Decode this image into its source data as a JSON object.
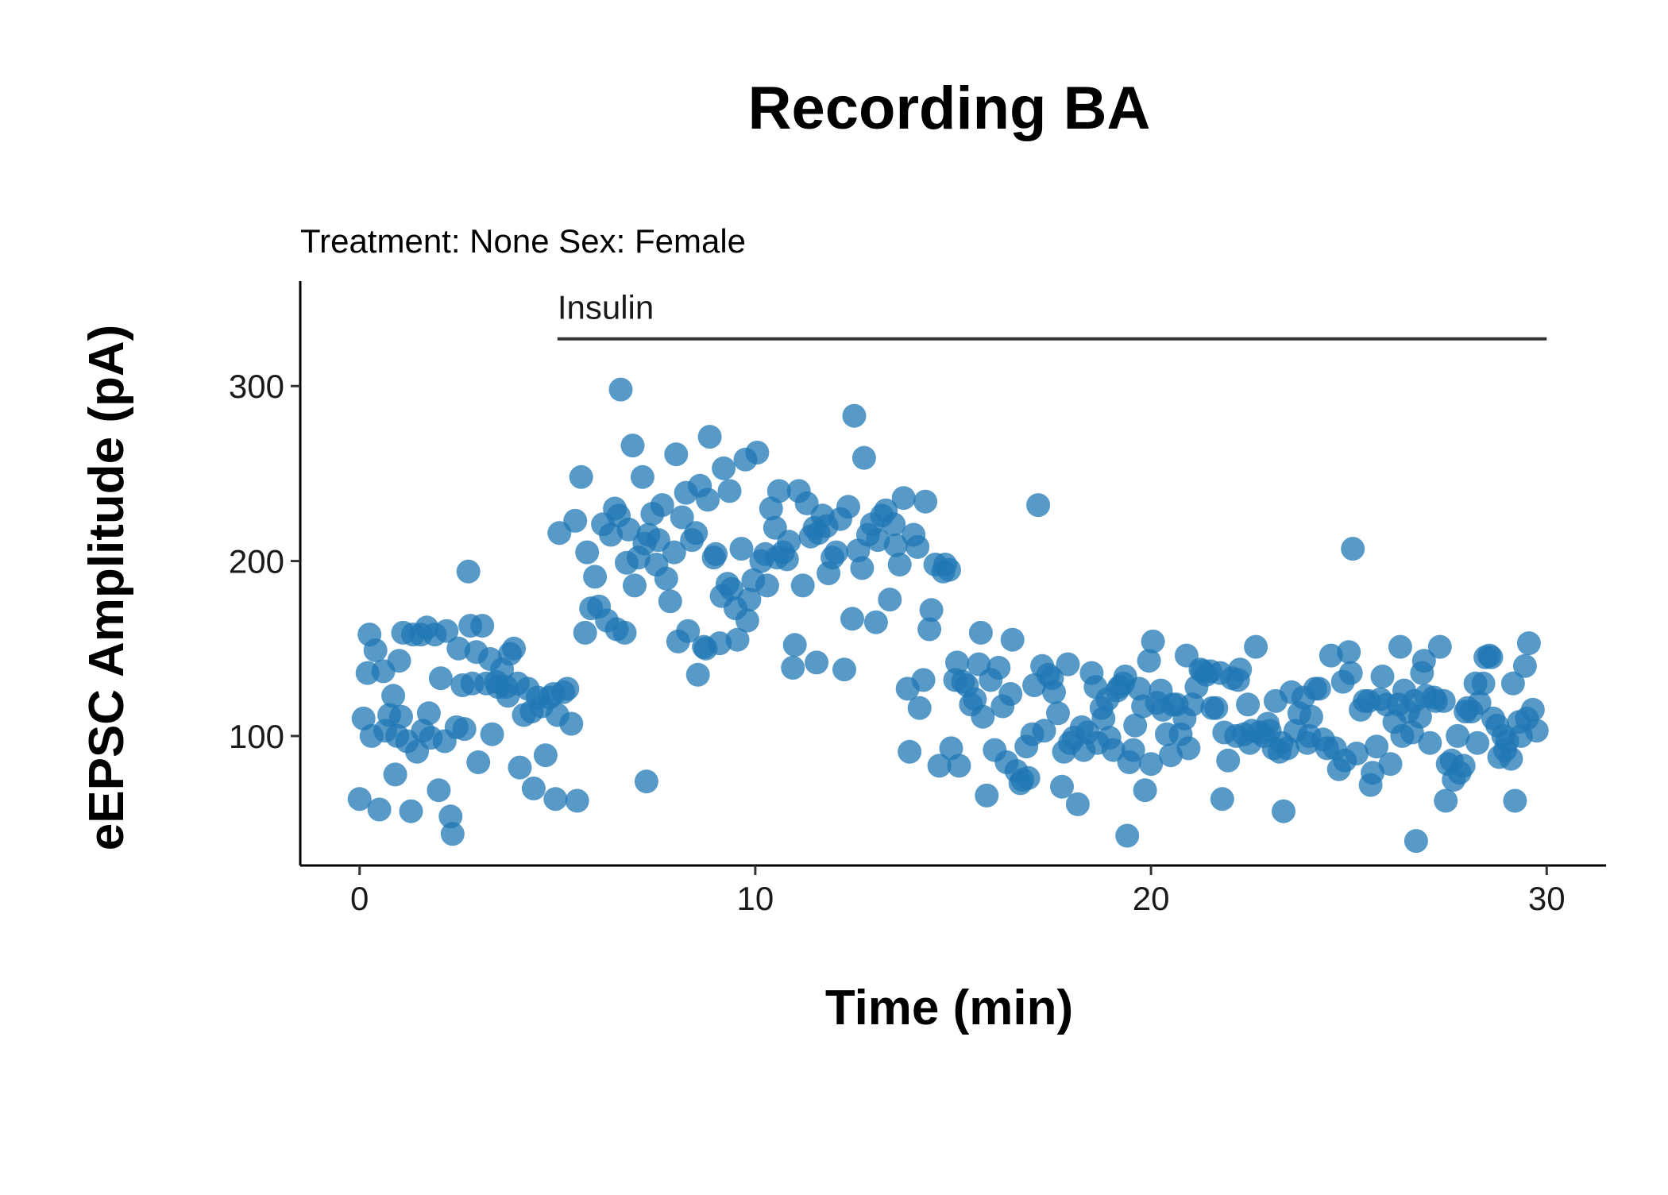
{
  "chart_data": {
    "type": "scatter",
    "title": "Recording BA",
    "subtitle": "Treatment: None  Sex: Female",
    "xlabel": "Time (min)",
    "ylabel": "eEPSC Amplitude (pA)",
    "xlim": [
      -1.5,
      31.5
    ],
    "ylim": [
      26,
      360
    ],
    "xticks": [
      0,
      10,
      20,
      30
    ],
    "yticks": [
      100,
      200,
      300
    ],
    "grid": false,
    "legend": "none",
    "point_color": "#1f77b4",
    "annotation": {
      "label": "Insulin",
      "x_start": 5,
      "x_end": 30,
      "y": 327
    },
    "points": [
      [
        0.0,
        64
      ],
      [
        0.1,
        110
      ],
      [
        0.2,
        136
      ],
      [
        0.25,
        158
      ],
      [
        0.3,
        100
      ],
      [
        0.4,
        149
      ],
      [
        0.5,
        58
      ],
      [
        0.6,
        137
      ],
      [
        0.65,
        103
      ],
      [
        0.75,
        112
      ],
      [
        0.85,
        123
      ],
      [
        0.9,
        78
      ],
      [
        0.95,
        100
      ],
      [
        1.0,
        143
      ],
      [
        1.05,
        111
      ],
      [
        1.1,
        159
      ],
      [
        1.2,
        97
      ],
      [
        1.3,
        57
      ],
      [
        1.35,
        158
      ],
      [
        1.45,
        91
      ],
      [
        1.55,
        158
      ],
      [
        1.6,
        103
      ],
      [
        1.7,
        162
      ],
      [
        1.75,
        113
      ],
      [
        1.8,
        99
      ],
      [
        1.9,
        158
      ],
      [
        2.0,
        69
      ],
      [
        2.05,
        133
      ],
      [
        2.15,
        97
      ],
      [
        2.2,
        160
      ],
      [
        2.3,
        54
      ],
      [
        2.35,
        44
      ],
      [
        2.45,
        105
      ],
      [
        2.5,
        150
      ],
      [
        2.6,
        129
      ],
      [
        2.65,
        104
      ],
      [
        2.75,
        194
      ],
      [
        2.8,
        163
      ],
      [
        2.85,
        130
      ],
      [
        2.95,
        148
      ],
      [
        3.0,
        85
      ],
      [
        3.1,
        163
      ],
      [
        3.2,
        130
      ],
      [
        3.3,
        144
      ],
      [
        3.35,
        101
      ],
      [
        3.45,
        131
      ],
      [
        3.5,
        128
      ],
      [
        3.6,
        138
      ],
      [
        3.7,
        128
      ],
      [
        3.75,
        123
      ],
      [
        3.8,
        147
      ],
      [
        3.9,
        150
      ],
      [
        4.0,
        130
      ],
      [
        4.05,
        82
      ],
      [
        4.15,
        112
      ],
      [
        4.25,
        127
      ],
      [
        4.35,
        114
      ],
      [
        4.4,
        70
      ],
      [
        4.5,
        122
      ],
      [
        4.6,
        117
      ],
      [
        4.7,
        89
      ],
      [
        4.8,
        122
      ],
      [
        4.9,
        124
      ],
      [
        4.95,
        64
      ],
      [
        5.0,
        112
      ],
      [
        5.05,
        216
      ],
      [
        5.15,
        125
      ],
      [
        5.25,
        127
      ],
      [
        5.35,
        107
      ],
      [
        5.45,
        223
      ],
      [
        5.5,
        63
      ],
      [
        5.6,
        248
      ],
      [
        5.7,
        159
      ],
      [
        5.75,
        205
      ],
      [
        5.85,
        173
      ],
      [
        5.95,
        191
      ],
      [
        6.05,
        174
      ],
      [
        6.15,
        221
      ],
      [
        6.25,
        166
      ],
      [
        6.35,
        215
      ],
      [
        6.45,
        230
      ],
      [
        6.5,
        161
      ],
      [
        6.55,
        226
      ],
      [
        6.6,
        298
      ],
      [
        6.7,
        159
      ],
      [
        6.75,
        199
      ],
      [
        6.8,
        218
      ],
      [
        6.9,
        266
      ],
      [
        6.95,
        186
      ],
      [
        7.05,
        202
      ],
      [
        7.15,
        248
      ],
      [
        7.2,
        210
      ],
      [
        7.25,
        74
      ],
      [
        7.3,
        215
      ],
      [
        7.4,
        227
      ],
      [
        7.5,
        198
      ],
      [
        7.55,
        212
      ],
      [
        7.65,
        232
      ],
      [
        7.75,
        190
      ],
      [
        7.85,
        177
      ],
      [
        7.95,
        205
      ],
      [
        8.0,
        261
      ],
      [
        8.05,
        154
      ],
      [
        8.15,
        225
      ],
      [
        8.25,
        239
      ],
      [
        8.3,
        160
      ],
      [
        8.4,
        212
      ],
      [
        8.5,
        216
      ],
      [
        8.55,
        135
      ],
      [
        8.6,
        243
      ],
      [
        8.7,
        151
      ],
      [
        8.75,
        150
      ],
      [
        8.8,
        235
      ],
      [
        8.85,
        271
      ],
      [
        8.95,
        202
      ],
      [
        9.0,
        204
      ],
      [
        9.1,
        153
      ],
      [
        9.15,
        180
      ],
      [
        9.2,
        253
      ],
      [
        9.3,
        187
      ],
      [
        9.35,
        240
      ],
      [
        9.4,
        184
      ],
      [
        9.5,
        173
      ],
      [
        9.55,
        155
      ],
      [
        9.65,
        207
      ],
      [
        9.75,
        258
      ],
      [
        9.8,
        166
      ],
      [
        9.85,
        178
      ],
      [
        9.95,
        189
      ],
      [
        10.05,
        262
      ],
      [
        10.15,
        200
      ],
      [
        10.25,
        204
      ],
      [
        10.3,
        186
      ],
      [
        10.4,
        230
      ],
      [
        10.5,
        219
      ],
      [
        10.55,
        202
      ],
      [
        10.6,
        240
      ],
      [
        10.7,
        205
      ],
      [
        10.8,
        201
      ],
      [
        10.85,
        211
      ],
      [
        10.95,
        139
      ],
      [
        11.0,
        152
      ],
      [
        11.1,
        240
      ],
      [
        11.2,
        186
      ],
      [
        11.3,
        233
      ],
      [
        11.4,
        214
      ],
      [
        11.5,
        219
      ],
      [
        11.55,
        142
      ],
      [
        11.6,
        216
      ],
      [
        11.7,
        226
      ],
      [
        11.8,
        220
      ],
      [
        11.85,
        193
      ],
      [
        11.95,
        202
      ],
      [
        12.05,
        205
      ],
      [
        12.15,
        224
      ],
      [
        12.25,
        138
      ],
      [
        12.35,
        231
      ],
      [
        12.45,
        167
      ],
      [
        12.5,
        283
      ],
      [
        12.6,
        206
      ],
      [
        12.7,
        196
      ],
      [
        12.75,
        259
      ],
      [
        12.85,
        215
      ],
      [
        12.95,
        221
      ],
      [
        13.05,
        165
      ],
      [
        13.1,
        212
      ],
      [
        13.2,
        226
      ],
      [
        13.3,
        229
      ],
      [
        13.4,
        178
      ],
      [
        13.5,
        221
      ],
      [
        13.55,
        209
      ],
      [
        13.65,
        198
      ],
      [
        13.75,
        236
      ],
      [
        13.85,
        127
      ],
      [
        13.9,
        91
      ],
      [
        14.0,
        215
      ],
      [
        14.1,
        208
      ],
      [
        14.15,
        116
      ],
      [
        14.25,
        132
      ],
      [
        14.3,
        234
      ],
      [
        14.4,
        161
      ],
      [
        14.45,
        172
      ],
      [
        14.55,
        198
      ],
      [
        14.65,
        83
      ],
      [
        14.75,
        194
      ],
      [
        14.8,
        198
      ],
      [
        14.9,
        195
      ],
      [
        14.95,
        93
      ],
      [
        15.05,
        132
      ],
      [
        15.1,
        142
      ],
      [
        15.15,
        83
      ],
      [
        15.25,
        131
      ],
      [
        15.35,
        129
      ],
      [
        15.45,
        118
      ],
      [
        15.55,
        121
      ],
      [
        15.65,
        141
      ],
      [
        15.7,
        159
      ],
      [
        15.75,
        111
      ],
      [
        15.85,
        66
      ],
      [
        15.95,
        132
      ],
      [
        16.05,
        92
      ],
      [
        16.15,
        139
      ],
      [
        16.25,
        117
      ],
      [
        16.35,
        85
      ],
      [
        16.45,
        124
      ],
      [
        16.5,
        155
      ],
      [
        16.6,
        80
      ],
      [
        16.7,
        73
      ],
      [
        16.75,
        75
      ],
      [
        16.85,
        94
      ],
      [
        16.9,
        76
      ],
      [
        17.0,
        101
      ],
      [
        17.05,
        129
      ],
      [
        17.15,
        232
      ],
      [
        17.25,
        140
      ],
      [
        17.3,
        103
      ],
      [
        17.4,
        135
      ],
      [
        17.5,
        133
      ],
      [
        17.55,
        125
      ],
      [
        17.65,
        113
      ],
      [
        17.75,
        71
      ],
      [
        17.8,
        91
      ],
      [
        17.9,
        141
      ],
      [
        17.95,
        96
      ],
      [
        18.05,
        99
      ],
      [
        18.15,
        61
      ],
      [
        18.25,
        105
      ],
      [
        18.3,
        92
      ],
      [
        18.4,
        102
      ],
      [
        18.5,
        136
      ],
      [
        18.6,
        128
      ],
      [
        18.65,
        96
      ],
      [
        18.75,
        116
      ],
      [
        18.8,
        110
      ],
      [
        18.9,
        121
      ],
      [
        18.95,
        99
      ],
      [
        19.05,
        92
      ],
      [
        19.15,
        126
      ],
      [
        19.2,
        128
      ],
      [
        19.3,
        130
      ],
      [
        19.35,
        134
      ],
      [
        19.4,
        43
      ],
      [
        19.45,
        85
      ],
      [
        19.55,
        92
      ],
      [
        19.6,
        106
      ],
      [
        19.7,
        127
      ],
      [
        19.8,
        117
      ],
      [
        19.85,
        69
      ],
      [
        19.95,
        143
      ],
      [
        20.0,
        84
      ],
      [
        20.05,
        154
      ],
      [
        20.15,
        119
      ],
      [
        20.25,
        126
      ],
      [
        20.3,
        115
      ],
      [
        20.4,
        101
      ],
      [
        20.5,
        89
      ],
      [
        20.55,
        118
      ],
      [
        20.65,
        118
      ],
      [
        20.75,
        101
      ],
      [
        20.85,
        110
      ],
      [
        20.9,
        146
      ],
      [
        20.95,
        93
      ],
      [
        21.05,
        118
      ],
      [
        21.15,
        128
      ],
      [
        21.25,
        138
      ],
      [
        21.3,
        137
      ],
      [
        21.4,
        135
      ],
      [
        21.5,
        137
      ],
      [
        21.55,
        116
      ],
      [
        21.65,
        116
      ],
      [
        21.75,
        136
      ],
      [
        21.8,
        64
      ],
      [
        21.85,
        102
      ],
      [
        21.95,
        86
      ],
      [
        22.05,
        133
      ],
      [
        22.15,
        100
      ],
      [
        22.2,
        132
      ],
      [
        22.25,
        138
      ],
      [
        22.35,
        101
      ],
      [
        22.45,
        118
      ],
      [
        22.5,
        96
      ],
      [
        22.55,
        103
      ],
      [
        22.65,
        151
      ],
      [
        22.75,
        102
      ],
      [
        22.85,
        100
      ],
      [
        22.95,
        107
      ],
      [
        23.0,
        103
      ],
      [
        23.1,
        93
      ],
      [
        23.15,
        120
      ],
      [
        23.25,
        91
      ],
      [
        23.3,
        96
      ],
      [
        23.35,
        57
      ],
      [
        23.45,
        93
      ],
      [
        23.55,
        125
      ],
      [
        23.65,
        103
      ],
      [
        23.75,
        113
      ],
      [
        23.85,
        122
      ],
      [
        23.95,
        96
      ],
      [
        24.0,
        100
      ],
      [
        24.05,
        111
      ],
      [
        24.15,
        127
      ],
      [
        24.25,
        127
      ],
      [
        24.35,
        98
      ],
      [
        24.45,
        93
      ],
      [
        24.55,
        146
      ],
      [
        24.65,
        93
      ],
      [
        24.75,
        81
      ],
      [
        24.85,
        131
      ],
      [
        24.9,
        86
      ],
      [
        25.0,
        148
      ],
      [
        25.05,
        136
      ],
      [
        25.1,
        207
      ],
      [
        25.2,
        90
      ],
      [
        25.3,
        115
      ],
      [
        25.4,
        120
      ],
      [
        25.5,
        120
      ],
      [
        25.55,
        72
      ],
      [
        25.6,
        79
      ],
      [
        25.7,
        94
      ],
      [
        25.8,
        121
      ],
      [
        25.85,
        134
      ],
      [
        25.95,
        118
      ],
      [
        26.05,
        84
      ],
      [
        26.15,
        108
      ],
      [
        26.25,
        118
      ],
      [
        26.3,
        151
      ],
      [
        26.35,
        100
      ],
      [
        26.4,
        126
      ],
      [
        26.5,
        114
      ],
      [
        26.6,
        102
      ],
      [
        26.65,
        120
      ],
      [
        26.7,
        40
      ],
      [
        26.8,
        111
      ],
      [
        26.85,
        136
      ],
      [
        26.9,
        143
      ],
      [
        26.95,
        123
      ],
      [
        27.05,
        96
      ],
      [
        27.15,
        122
      ],
      [
        27.2,
        120
      ],
      [
        27.3,
        151
      ],
      [
        27.4,
        120
      ],
      [
        27.45,
        63
      ],
      [
        27.5,
        84
      ],
      [
        27.6,
        86
      ],
      [
        27.65,
        75
      ],
      [
        27.75,
        100
      ],
      [
        27.8,
        79
      ],
      [
        27.9,
        83
      ],
      [
        27.95,
        114
      ],
      [
        28.0,
        116
      ],
      [
        28.1,
        114
      ],
      [
        28.2,
        130
      ],
      [
        28.25,
        96
      ],
      [
        28.3,
        119
      ],
      [
        28.4,
        130
      ],
      [
        28.45,
        145
      ],
      [
        28.55,
        146
      ],
      [
        28.6,
        145
      ],
      [
        28.65,
        110
      ],
      [
        28.75,
        106
      ],
      [
        28.8,
        88
      ],
      [
        28.9,
        100
      ],
      [
        28.95,
        92
      ],
      [
        29.0,
        97
      ],
      [
        29.1,
        87
      ],
      [
        29.15,
        130
      ],
      [
        29.2,
        63
      ],
      [
        29.3,
        108
      ],
      [
        29.35,
        100
      ],
      [
        29.45,
        140
      ],
      [
        29.5,
        110
      ],
      [
        29.55,
        153
      ],
      [
        29.65,
        115
      ],
      [
        29.75,
        103
      ]
    ]
  }
}
